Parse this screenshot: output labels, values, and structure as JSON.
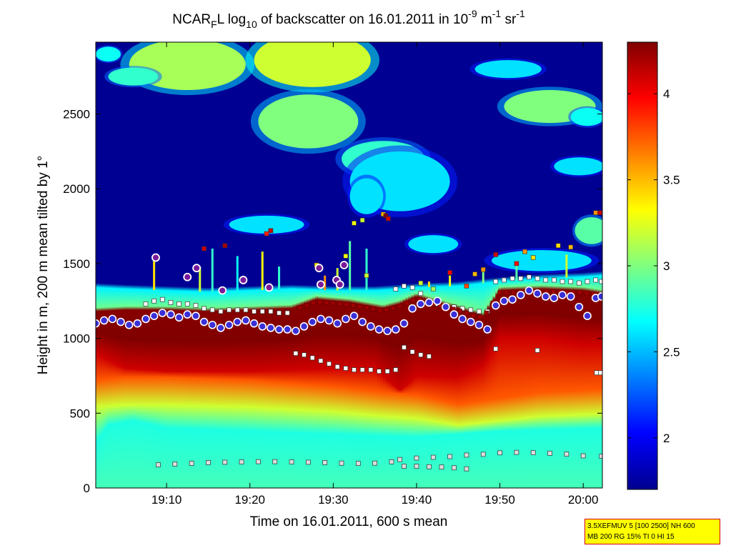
{
  "chart_data": {
    "type": "heatmap",
    "title": {
      "p1": "NCAR",
      "sub1": "F",
      "p2": "L log",
      "sub2": "10",
      "p3": " of backscatter on 16.01.2011 in 10",
      "sup1": "-9",
      "p4": " m",
      "sup2": "-1",
      "p5": " sr",
      "sup3": "-1"
    },
    "xlabel": "Time on 16.01.2011, 600 s mean",
    "ylabel": "Height in m, 200 m mean tilted by 1°",
    "x_unit": "minutes after 19:00",
    "xlim": [
      1.5,
      62.3
    ],
    "ylim": [
      0,
      2980
    ],
    "x_ticks": [
      {
        "value": 10,
        "label": "19:10"
      },
      {
        "value": 20,
        "label": "19:20"
      },
      {
        "value": 30,
        "label": "19:30"
      },
      {
        "value": 40,
        "label": "19:40"
      },
      {
        "value": 50,
        "label": "19:50"
      },
      {
        "value": 60,
        "label": "20:00"
      }
    ],
    "y_ticks": [
      0,
      500,
      1000,
      1500,
      2000,
      2500
    ],
    "colorbar": {
      "range": [
        1.7,
        4.3
      ],
      "ticks": [
        2,
        2.5,
        3,
        3.5,
        4
      ],
      "tick_labels": [
        "2",
        "2.5",
        "3",
        "3.5",
        "4"
      ],
      "colormap": "jet"
    },
    "layers": {
      "aerosol_top_m": [
        [
          1.5,
          1340
        ],
        [
          5,
          1330
        ],
        [
          10,
          1320
        ],
        [
          15,
          1310
        ],
        [
          20,
          1320
        ],
        [
          25,
          1330
        ],
        [
          30,
          1320
        ],
        [
          35,
          1320
        ],
        [
          38,
          1330
        ],
        [
          40,
          1340
        ],
        [
          45,
          1350
        ],
        [
          50,
          1380
        ],
        [
          55,
          1400
        ],
        [
          60,
          1410
        ],
        [
          62.3,
          1420
        ]
      ],
      "cloud_top_m": [
        [
          1.5,
          1180
        ],
        [
          5,
          1190
        ],
        [
          10,
          1190
        ],
        [
          15,
          1180
        ],
        [
          20,
          1190
        ],
        [
          25,
          1200
        ],
        [
          28,
          1260
        ],
        [
          32,
          1240
        ],
        [
          36,
          1200
        ],
        [
          38,
          1230
        ],
        [
          40,
          1280
        ],
        [
          45,
          1200
        ],
        [
          48,
          1150
        ],
        [
          50,
          1320
        ],
        [
          55,
          1330
        ],
        [
          60,
          1320
        ],
        [
          62.3,
          1300
        ]
      ],
      "cloud_base_m": [
        [
          1.5,
          900
        ],
        [
          5,
          800
        ],
        [
          10,
          780
        ],
        [
          20,
          780
        ],
        [
          25,
          790
        ],
        [
          30,
          800
        ],
        [
          35,
          800
        ],
        [
          38,
          650
        ],
        [
          40,
          750
        ],
        [
          45,
          740
        ],
        [
          48,
          820
        ],
        [
          50,
          1000
        ],
        [
          55,
          1000
        ],
        [
          60,
          960
        ],
        [
          62.3,
          960
        ]
      ],
      "mixed_layer_m": [
        [
          1.5,
          720
        ],
        [
          5,
          740
        ],
        [
          10,
          740
        ],
        [
          20,
          720
        ],
        [
          30,
          680
        ],
        [
          36,
          640
        ],
        [
          40,
          620
        ],
        [
          45,
          560
        ],
        [
          50,
          600
        ],
        [
          55,
          640
        ],
        [
          62.3,
          660
        ]
      ],
      "surface_haze_m": [
        [
          1.5,
          300
        ],
        [
          3,
          420
        ],
        [
          6,
          450
        ],
        [
          10,
          400
        ],
        [
          20,
          380
        ],
        [
          30,
          360
        ],
        [
          40,
          340
        ],
        [
          50,
          380
        ],
        [
          62.3,
          400
        ]
      ]
    },
    "elevated_clouds": [
      {
        "x": 12.5,
        "y": 2830,
        "rx": 7,
        "ry": 170,
        "v": 3.1
      },
      {
        "x": 6,
        "y": 2750,
        "rx": 3,
        "ry": 60,
        "v": 2.8
      },
      {
        "x": 3,
        "y": 2900,
        "rx": 1.5,
        "ry": 50,
        "v": 2.7
      },
      {
        "x": 27.5,
        "y": 2860,
        "rx": 7,
        "ry": 180,
        "v": 3.2
      },
      {
        "x": 27,
        "y": 2450,
        "rx": 6,
        "ry": 180,
        "v": 3.0
      },
      {
        "x": 36,
        "y": 2200,
        "rx": 5,
        "ry": 120,
        "v": 2.8
      },
      {
        "x": 38,
        "y": 2050,
        "rx": 6,
        "ry": 200,
        "v": 2.6
      },
      {
        "x": 34,
        "y": 1950,
        "rx": 2,
        "ry": 120,
        "v": 2.6
      },
      {
        "x": 22,
        "y": 1760,
        "rx": 4.5,
        "ry": 60,
        "v": 2.6
      },
      {
        "x": 42,
        "y": 1630,
        "rx": 3,
        "ry": 60,
        "v": 2.6
      },
      {
        "x": 51,
        "y": 2800,
        "rx": 4,
        "ry": 60,
        "v": 2.6
      },
      {
        "x": 56,
        "y": 2550,
        "rx": 5.5,
        "ry": 110,
        "v": 3.0
      },
      {
        "x": 60.5,
        "y": 2480,
        "rx": 2,
        "ry": 60,
        "v": 2.7
      },
      {
        "x": 59.5,
        "y": 2150,
        "rx": 3,
        "ry": 60,
        "v": 2.6
      },
      {
        "x": 61,
        "y": 1720,
        "rx": 2,
        "ry": 90,
        "v": 2.9
      },
      {
        "x": 55,
        "y": 1520,
        "rx": 6,
        "ry": 70,
        "v": 2.6
      }
    ],
    "virga": [
      {
        "x": 8.5,
        "top": 1520,
        "v": 3.4
      },
      {
        "x": 14,
        "top": 1480,
        "v": 3.2
      },
      {
        "x": 15.5,
        "top": 1600,
        "v": 2.8
      },
      {
        "x": 18.5,
        "top": 1550,
        "v": 2.7
      },
      {
        "x": 21.5,
        "top": 1580,
        "v": 3.3
      },
      {
        "x": 23.5,
        "top": 1480,
        "v": 2.8
      },
      {
        "x": 29,
        "top": 1420,
        "v": 3.6
      },
      {
        "x": 30.5,
        "top": 1470,
        "v": 3.2
      },
      {
        "x": 32,
        "top": 1650,
        "v": 2.9
      },
      {
        "x": 34,
        "top": 1600,
        "v": 2.8
      },
      {
        "x": 41.5,
        "top": 1380,
        "v": 3.4
      },
      {
        "x": 44,
        "top": 1420,
        "v": 3.3
      },
      {
        "x": 48,
        "top": 1450,
        "v": 3.0
      },
      {
        "x": 52,
        "top": 1520,
        "v": 2.9
      },
      {
        "x": 58,
        "top": 1560,
        "v": 3.2
      }
    ],
    "series_cloud_base_circles": [
      [
        1.5,
        1100
      ],
      [
        2.5,
        1120
      ],
      [
        3.5,
        1130
      ],
      [
        4.5,
        1110
      ],
      [
        5.5,
        1090
      ],
      [
        6.5,
        1100
      ],
      [
        7.5,
        1130
      ],
      [
        8.5,
        1150
      ],
      [
        9.5,
        1170
      ],
      [
        10.5,
        1160
      ],
      [
        11.5,
        1140
      ],
      [
        12.5,
        1160
      ],
      [
        13.5,
        1150
      ],
      [
        14.5,
        1110
      ],
      [
        15.5,
        1090
      ],
      [
        16.5,
        1070
      ],
      [
        17.5,
        1090
      ],
      [
        18.5,
        1110
      ],
      [
        19.5,
        1120
      ],
      [
        20.5,
        1100
      ],
      [
        21.5,
        1080
      ],
      [
        22.5,
        1070
      ],
      [
        23.5,
        1060
      ],
      [
        24.5,
        1060
      ],
      [
        25.5,
        1050
      ],
      [
        26.5,
        1080
      ],
      [
        27.5,
        1110
      ],
      [
        28.5,
        1130
      ],
      [
        29.5,
        1120
      ],
      [
        30.5,
        1100
      ],
      [
        31.5,
        1130
      ],
      [
        32.5,
        1150
      ],
      [
        33.5,
        1110
      ],
      [
        34.5,
        1080
      ],
      [
        35.5,
        1060
      ],
      [
        36.5,
        1050
      ],
      [
        37.5,
        1060
      ],
      [
        38.5,
        1100
      ],
      [
        39.5,
        1200
      ],
      [
        40.5,
        1230
      ],
      [
        41.5,
        1240
      ],
      [
        42.5,
        1250
      ],
      [
        43.5,
        1210
      ],
      [
        44.5,
        1160
      ],
      [
        45.5,
        1130
      ],
      [
        46.5,
        1110
      ],
      [
        47.5,
        1090
      ],
      [
        48.5,
        1060
      ],
      [
        49.5,
        1220
      ],
      [
        50.5,
        1250
      ],
      [
        51.5,
        1260
      ],
      [
        52.5,
        1290
      ],
      [
        53.5,
        1320
      ],
      [
        54.5,
        1300
      ],
      [
        55.5,
        1280
      ],
      [
        56.5,
        1270
      ],
      [
        57.5,
        1290
      ],
      [
        58.5,
        1280
      ],
      [
        59.5,
        1210
      ],
      [
        60.5,
        1150
      ],
      [
        61.5,
        1270
      ],
      [
        62.2,
        1280
      ]
    ],
    "series_isolated_circles": [
      [
        8.7,
        1540
      ],
      [
        12.5,
        1410
      ],
      [
        13.6,
        1470
      ],
      [
        16.7,
        1320
      ],
      [
        19.2,
        1390
      ],
      [
        22.3,
        1340
      ],
      [
        28.3,
        1470
      ],
      [
        28.5,
        1360
      ],
      [
        30.4,
        1390
      ],
      [
        30.8,
        1360
      ],
      [
        31.3,
        1490
      ]
    ],
    "series_aerosol_squares": [
      [
        7.5,
        1230
      ],
      [
        8.5,
        1250
      ],
      [
        9.5,
        1260
      ],
      [
        10.5,
        1240
      ],
      [
        11.5,
        1230
      ],
      [
        12.5,
        1230
      ],
      [
        13.5,
        1220
      ],
      [
        14.5,
        1200
      ],
      [
        15.5,
        1190
      ],
      [
        16.5,
        1180
      ],
      [
        17.5,
        1190
      ],
      [
        18.5,
        1190
      ],
      [
        19.5,
        1190
      ],
      [
        20.5,
        1180
      ],
      [
        21.5,
        1180
      ],
      [
        22.5,
        1180
      ],
      [
        23.5,
        1170
      ],
      [
        24.5,
        1170
      ],
      [
        37.5,
        1330
      ],
      [
        38.5,
        1350
      ],
      [
        39.5,
        1340
      ],
      [
        40.5,
        1300
      ],
      [
        41.5,
        1250
      ],
      [
        42.5,
        1230
      ],
      [
        43.5,
        1220
      ],
      [
        44.5,
        1210
      ],
      [
        45.5,
        1200
      ],
      [
        46.5,
        1190
      ],
      [
        47.5,
        1180
      ],
      [
        48.5,
        1180
      ],
      [
        49.5,
        1380
      ],
      [
        50.5,
        1390
      ],
      [
        51.5,
        1400
      ],
      [
        52.5,
        1400
      ],
      [
        53.5,
        1410
      ],
      [
        54.5,
        1400
      ],
      [
        55.5,
        1390
      ],
      [
        56.5,
        1390
      ],
      [
        57.5,
        1380
      ],
      [
        58.5,
        1380
      ],
      [
        59.5,
        1370
      ],
      [
        60.5,
        1380
      ],
      [
        61.5,
        1390
      ],
      [
        62.2,
        1380
      ]
    ],
    "series_lower_base_squares": [
      [
        25.5,
        900
      ],
      [
        26.5,
        890
      ],
      [
        27.5,
        870
      ],
      [
        28.5,
        850
      ],
      [
        29.5,
        830
      ],
      [
        30.5,
        810
      ],
      [
        31.5,
        800
      ],
      [
        32.5,
        790
      ],
      [
        33.5,
        790
      ],
      [
        34.5,
        790
      ],
      [
        35.5,
        780
      ],
      [
        36.5,
        780
      ],
      [
        37.5,
        790
      ],
      [
        38.5,
        940
      ],
      [
        39.5,
        910
      ],
      [
        40.5,
        890
      ],
      [
        41.5,
        880
      ],
      [
        49.5,
        930
      ],
      [
        54.5,
        920
      ],
      [
        61.6,
        770
      ],
      [
        62.1,
        770
      ]
    ],
    "series_surface_squares": [
      [
        9,
        155
      ],
      [
        11,
        160
      ],
      [
        13,
        165
      ],
      [
        15,
        170
      ],
      [
        17,
        172
      ],
      [
        19,
        174
      ],
      [
        21,
        176
      ],
      [
        23,
        176
      ],
      [
        25,
        174
      ],
      [
        27,
        172
      ],
      [
        29,
        170
      ],
      [
        31,
        166
      ],
      [
        33,
        164
      ],
      [
        35,
        166
      ],
      [
        37,
        175
      ],
      [
        38,
        190
      ],
      [
        40,
        200
      ],
      [
        42,
        205
      ],
      [
        44,
        210
      ],
      [
        46,
        220
      ],
      [
        48,
        225
      ],
      [
        50,
        235
      ],
      [
        52,
        238
      ],
      [
        54,
        236
      ],
      [
        56,
        232
      ],
      [
        58,
        226
      ],
      [
        60,
        215
      ],
      [
        62.2,
        212
      ]
    ],
    "series_surface2_squares": [
      [
        38.5,
        145
      ],
      [
        40,
        145
      ],
      [
        41.5,
        142
      ],
      [
        43,
        140
      ],
      [
        44.5,
        135
      ],
      [
        46,
        128
      ]
    ],
    "series_colored_squares": [
      {
        "x": 14.5,
        "y": 1600,
        "v": 4.1
      },
      {
        "x": 17,
        "y": 1620,
        "v": 4.2
      },
      {
        "x": 22.5,
        "y": 1720,
        "v": 4.1
      },
      {
        "x": 22,
        "y": 1700,
        "v": 3.9
      },
      {
        "x": 28,
        "y": 1490,
        "v": 3.4
      },
      {
        "x": 31.5,
        "y": 1550,
        "v": 3.3
      },
      {
        "x": 32.5,
        "y": 1770,
        "v": 3.3
      },
      {
        "x": 33.5,
        "y": 1790,
        "v": 3.2
      },
      {
        "x": 36,
        "y": 1830,
        "v": 3.5
      },
      {
        "x": 36.3,
        "y": 1820,
        "v": 4.3
      },
      {
        "x": 36.6,
        "y": 1800,
        "v": 4.1
      },
      {
        "x": 34,
        "y": 1420,
        "v": 3.2
      },
      {
        "x": 40.5,
        "y": 1370,
        "v": 3.2
      },
      {
        "x": 42,
        "y": 1330,
        "v": 3.1
      },
      {
        "x": 44,
        "y": 1440,
        "v": 4.0
      },
      {
        "x": 46,
        "y": 1350,
        "v": 3.8
      },
      {
        "x": 47,
        "y": 1430,
        "v": 3.5
      },
      {
        "x": 48,
        "y": 1460,
        "v": 3.6
      },
      {
        "x": 49.5,
        "y": 1560,
        "v": 4.1
      },
      {
        "x": 52,
        "y": 1500,
        "v": 4.0
      },
      {
        "x": 53,
        "y": 1580,
        "v": 3.6
      },
      {
        "x": 54,
        "y": 1540,
        "v": 3.4
      },
      {
        "x": 57,
        "y": 1620,
        "v": 3.4
      },
      {
        "x": 58.5,
        "y": 1610,
        "v": 3.5
      },
      {
        "x": 61.5,
        "y": 1840,
        "v": 3.6
      },
      {
        "x": 62,
        "y": 1840,
        "v": 4.1
      }
    ]
  },
  "footer_note": {
    "line1": "3.5XEFMUV 5 [100 2500] NH 600",
    "line2": "MB 200 RG 15% TI 0 HI 15"
  }
}
